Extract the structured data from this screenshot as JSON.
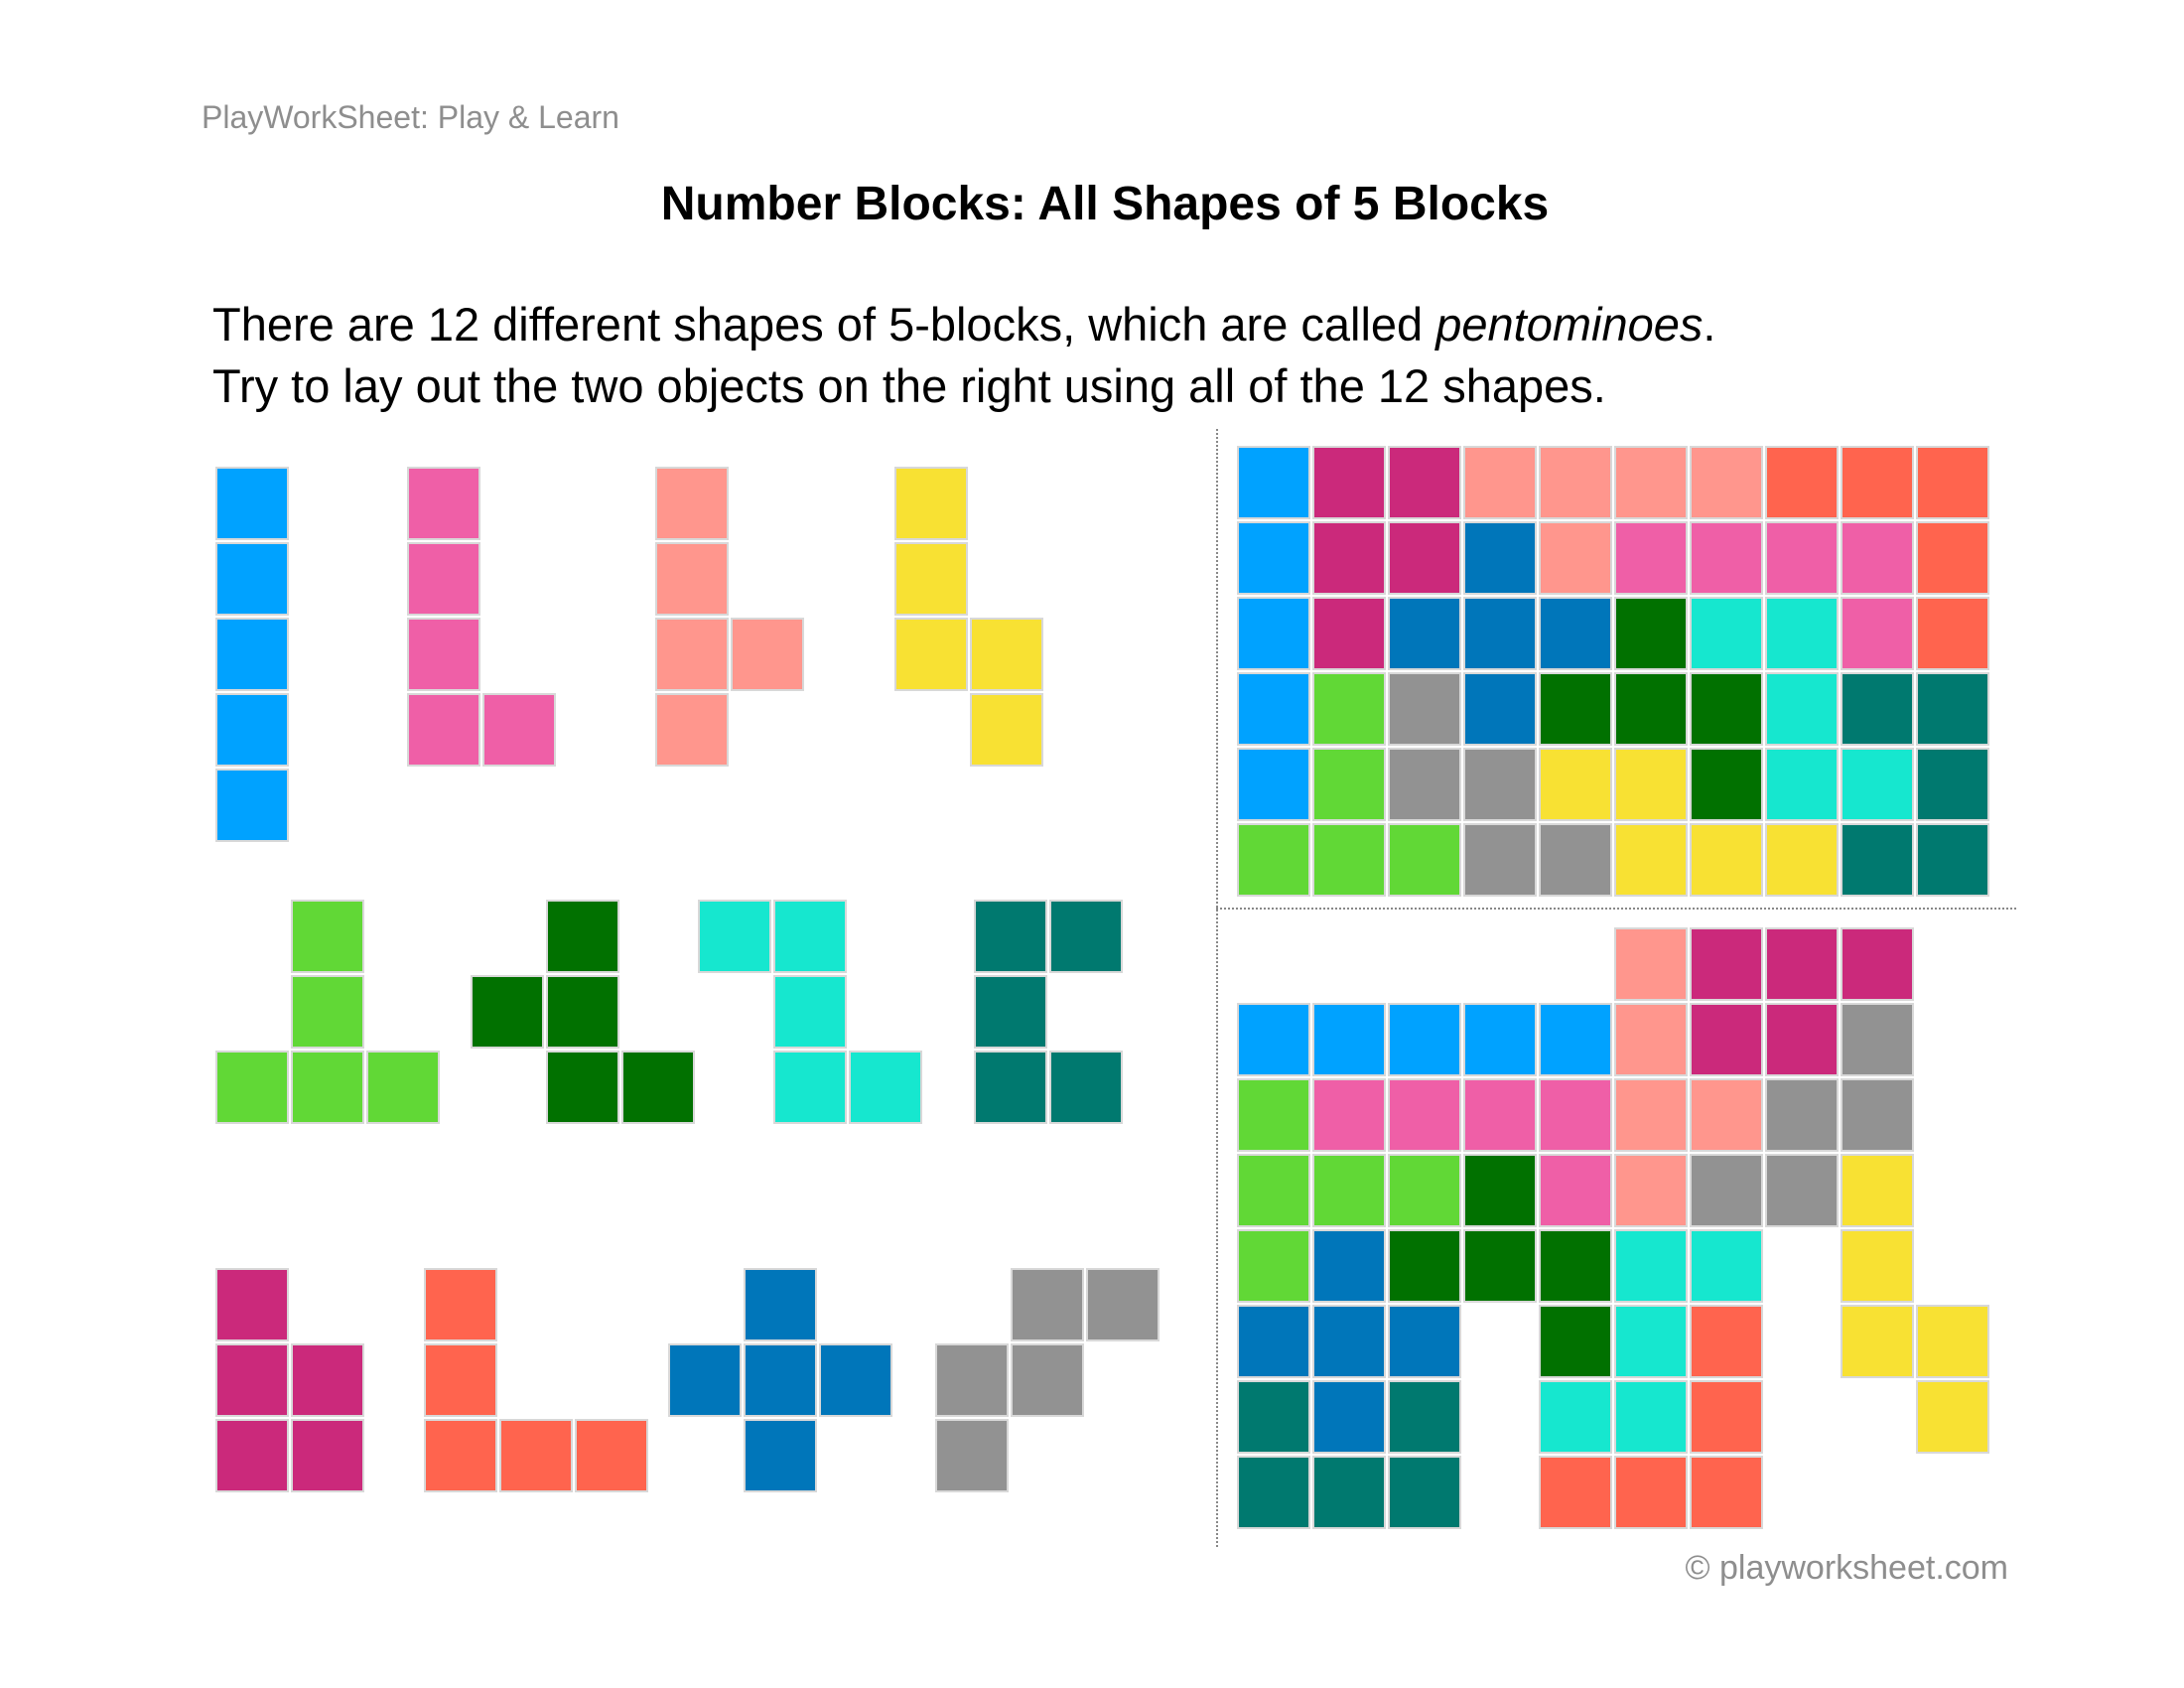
{
  "header": {
    "brand": "PlayWorkSheet: Play & Learn"
  },
  "title": "Number Blocks: All Shapes of 5 Blocks",
  "intro": {
    "line1_pre": "There are 12 different shapes of 5-blocks, which are called ",
    "line1_em": "pentominoes",
    "line1_post": ".",
    "line2": "Try to lay out the two objects on the right using all of the 12 shapes."
  },
  "footer": "© playworksheet.com",
  "colors": {
    "B": "#00a2ff",
    "P": "#ef5fa7",
    "S": "#ff968d",
    "Y": "#f8e133",
    "L": "#61d836",
    "G": "#017100",
    "C": "#16e7cf",
    "T": "#00796f",
    "M": "#cb297b",
    "O": "#ff644e",
    "D": "#0076ba",
    "A": "#929292"
  },
  "shapes": [
    {
      "name": "I",
      "color": "B",
      "cells": [
        [
          0,
          0
        ],
        [
          0,
          1
        ],
        [
          0,
          2
        ],
        [
          0,
          3
        ],
        [
          0,
          4
        ]
      ]
    },
    {
      "name": "L",
      "color": "P",
      "cells": [
        [
          0,
          0
        ],
        [
          0,
          1
        ],
        [
          0,
          2
        ],
        [
          0,
          3
        ],
        [
          1,
          3
        ]
      ]
    },
    {
      "name": "Y",
      "color": "S",
      "cells": [
        [
          0,
          0
        ],
        [
          0,
          1
        ],
        [
          0,
          2
        ],
        [
          1,
          2
        ],
        [
          0,
          3
        ]
      ]
    },
    {
      "name": "N",
      "color": "Y",
      "cells": [
        [
          0,
          0
        ],
        [
          0,
          1
        ],
        [
          0,
          2
        ],
        [
          1,
          2
        ],
        [
          1,
          3
        ]
      ]
    },
    {
      "name": "T",
      "color": "L",
      "cells": [
        [
          1,
          0
        ],
        [
          1,
          1
        ],
        [
          0,
          2
        ],
        [
          1,
          2
        ],
        [
          2,
          2
        ]
      ]
    },
    {
      "name": "F",
      "color": "G",
      "cells": [
        [
          1,
          0
        ],
        [
          0,
          1
        ],
        [
          1,
          1
        ],
        [
          1,
          2
        ],
        [
          2,
          2
        ]
      ]
    },
    {
      "name": "Z",
      "color": "C",
      "cells": [
        [
          0,
          0
        ],
        [
          1,
          0
        ],
        [
          1,
          1
        ],
        [
          1,
          2
        ],
        [
          2,
          2
        ]
      ]
    },
    {
      "name": "U",
      "color": "T",
      "cells": [
        [
          0,
          0
        ],
        [
          1,
          0
        ],
        [
          0,
          1
        ],
        [
          0,
          2
        ],
        [
          1,
          2
        ]
      ]
    },
    {
      "name": "P",
      "color": "M",
      "cells": [
        [
          0,
          0
        ],
        [
          0,
          1
        ],
        [
          1,
          1
        ],
        [
          0,
          2
        ],
        [
          1,
          2
        ]
      ]
    },
    {
      "name": "V",
      "color": "O",
      "cells": [
        [
          0,
          0
        ],
        [
          0,
          1
        ],
        [
          0,
          2
        ],
        [
          1,
          2
        ],
        [
          2,
          2
        ]
      ]
    },
    {
      "name": "X",
      "color": "D",
      "cells": [
        [
          1,
          0
        ],
        [
          0,
          1
        ],
        [
          1,
          1
        ],
        [
          2,
          1
        ],
        [
          1,
          2
        ]
      ]
    },
    {
      "name": "W",
      "color": "A",
      "cells": [
        [
          1,
          0
        ],
        [
          2,
          0
        ],
        [
          0,
          1
        ],
        [
          1,
          1
        ],
        [
          0,
          2
        ]
      ]
    }
  ],
  "puzzles": [
    {
      "rows": [
        "BMMSSSSOOO",
        "BMMDSPPPPO",
        "BMDDDGCCPO",
        "BLADGGGCTT",
        "BLAAYYGCCT",
        "LLLAAYYYTT"
      ]
    },
    {
      "rows": [
        ".....SMMM.",
        "BBBBBSMMA.",
        "LPPPPSSAA.",
        "LLLGPSAAY.",
        "LDGGGCC.Y.",
        "DDD.GCO.YY",
        "TDT.CCO..Y",
        "TTT.OOO..."
      ]
    }
  ]
}
